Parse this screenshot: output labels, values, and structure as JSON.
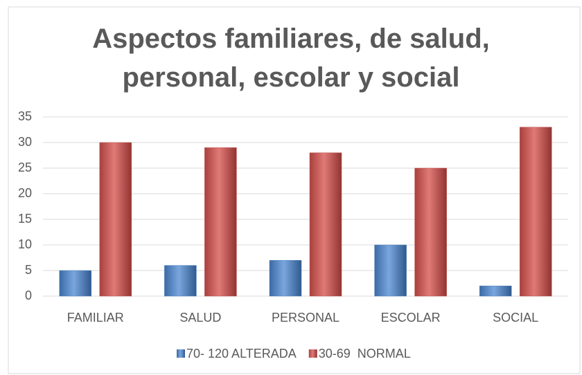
{
  "chart_data": {
    "type": "bar",
    "title": "Aspectos familiares, de salud, personal, escolar y social",
    "categories": [
      "FAMILIAR",
      "SALUD",
      "PERSONAL",
      "ESCOLAR",
      "SOCIAL"
    ],
    "series": [
      {
        "name": "70- 120 ALTERADA",
        "color": "#4f81bd",
        "values": [
          5,
          6,
          7,
          10,
          2
        ]
      },
      {
        "name": "30-69  NORMAL",
        "color": "#c0504d",
        "values": [
          30,
          29,
          28,
          25,
          33
        ]
      }
    ],
    "ylim": [
      0,
      35
    ],
    "yticks": [
      0,
      5,
      10,
      15,
      20,
      25,
      30,
      35
    ],
    "grid": true,
    "legend": "bottom"
  }
}
